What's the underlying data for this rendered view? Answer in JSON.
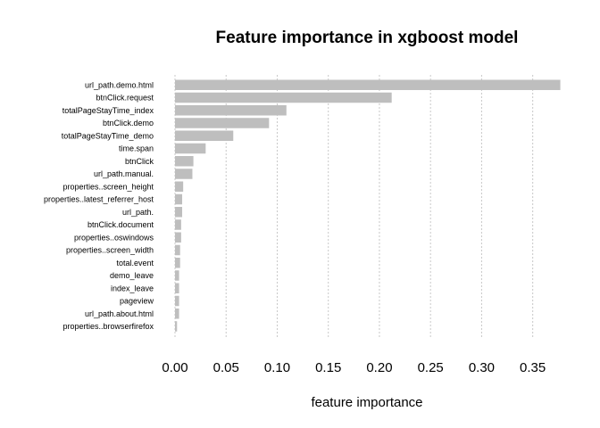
{
  "chart_data": {
    "type": "bar",
    "orientation": "horizontal",
    "title": "Feature importance in xgboost model",
    "xlabel": "feature importance",
    "ylabel": "",
    "xlim": [
      0,
      0.38
    ],
    "xticks": [
      0.0,
      0.05,
      0.1,
      0.15,
      0.2,
      0.25,
      0.3,
      0.35
    ],
    "xtick_labels": [
      "0.00",
      "0.05",
      "0.10",
      "0.15",
      "0.20",
      "0.25",
      "0.30",
      "0.35"
    ],
    "grid": "vertical-dotted",
    "bar_color": "#bebebe",
    "categories": [
      "url_path.demo.html",
      "btnClick.request",
      "totalPageStayTime_index",
      "btnClick.demo",
      "totalPageStayTime_demo",
      "time.span",
      "btnClick",
      "url_path.manual.",
      "properties..screen_height",
      "properties..latest_referrer_host",
      "url_path.",
      "btnClick.document",
      "properties..oswindows",
      "properties..screen_width",
      "total.event",
      "demo_leave",
      "index_leave",
      "pageview",
      "url_path.about.html",
      "properties..browserfirefox"
    ],
    "values": [
      0.377,
      0.212,
      0.109,
      0.092,
      0.057,
      0.03,
      0.018,
      0.017,
      0.008,
      0.007,
      0.007,
      0.006,
      0.006,
      0.005,
      0.005,
      0.004,
      0.004,
      0.004,
      0.004,
      0.002
    ]
  }
}
